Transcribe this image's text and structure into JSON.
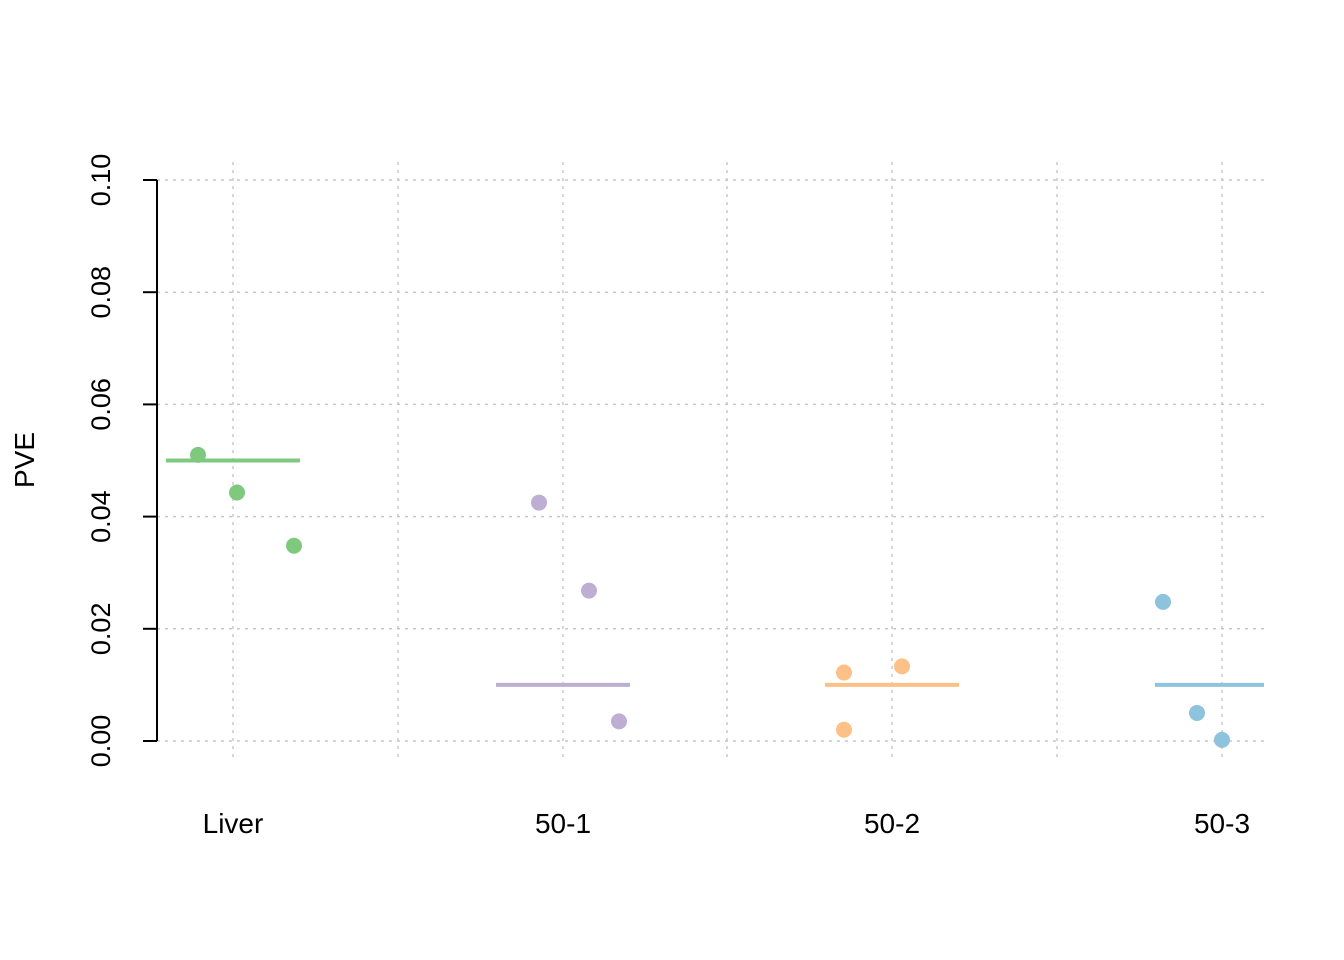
{
  "chart_data": {
    "type": "scatter",
    "title": "",
    "xlabel": "",
    "ylabel": "PVE",
    "ylim": [
      0,
      0.1
    ],
    "yticks": [
      "0.00",
      "0.02",
      "0.04",
      "0.06",
      "0.08",
      "0.10"
    ],
    "grid": true,
    "categories": [
      "Liver",
      "50-1",
      "50-2",
      "50-3"
    ],
    "groups": [
      {
        "category": "Liver",
        "color": "#7fc97f",
        "reference_line": 0.05,
        "points": [
          0.051,
          0.0443,
          0.0348
        ]
      },
      {
        "category": "50-1",
        "color": "#beaed4",
        "reference_line": 0.01,
        "points": [
          0.0425,
          0.0268,
          0.0035
        ]
      },
      {
        "category": "50-2",
        "color": "#fdc086",
        "reference_line": 0.01,
        "points": [
          0.0122,
          0.0133,
          0.002
        ]
      },
      {
        "category": "50-3",
        "color": "#8dc3dc",
        "reference_line": 0.01,
        "points": [
          0.0248,
          0.005,
          0.0002
        ]
      }
    ]
  }
}
